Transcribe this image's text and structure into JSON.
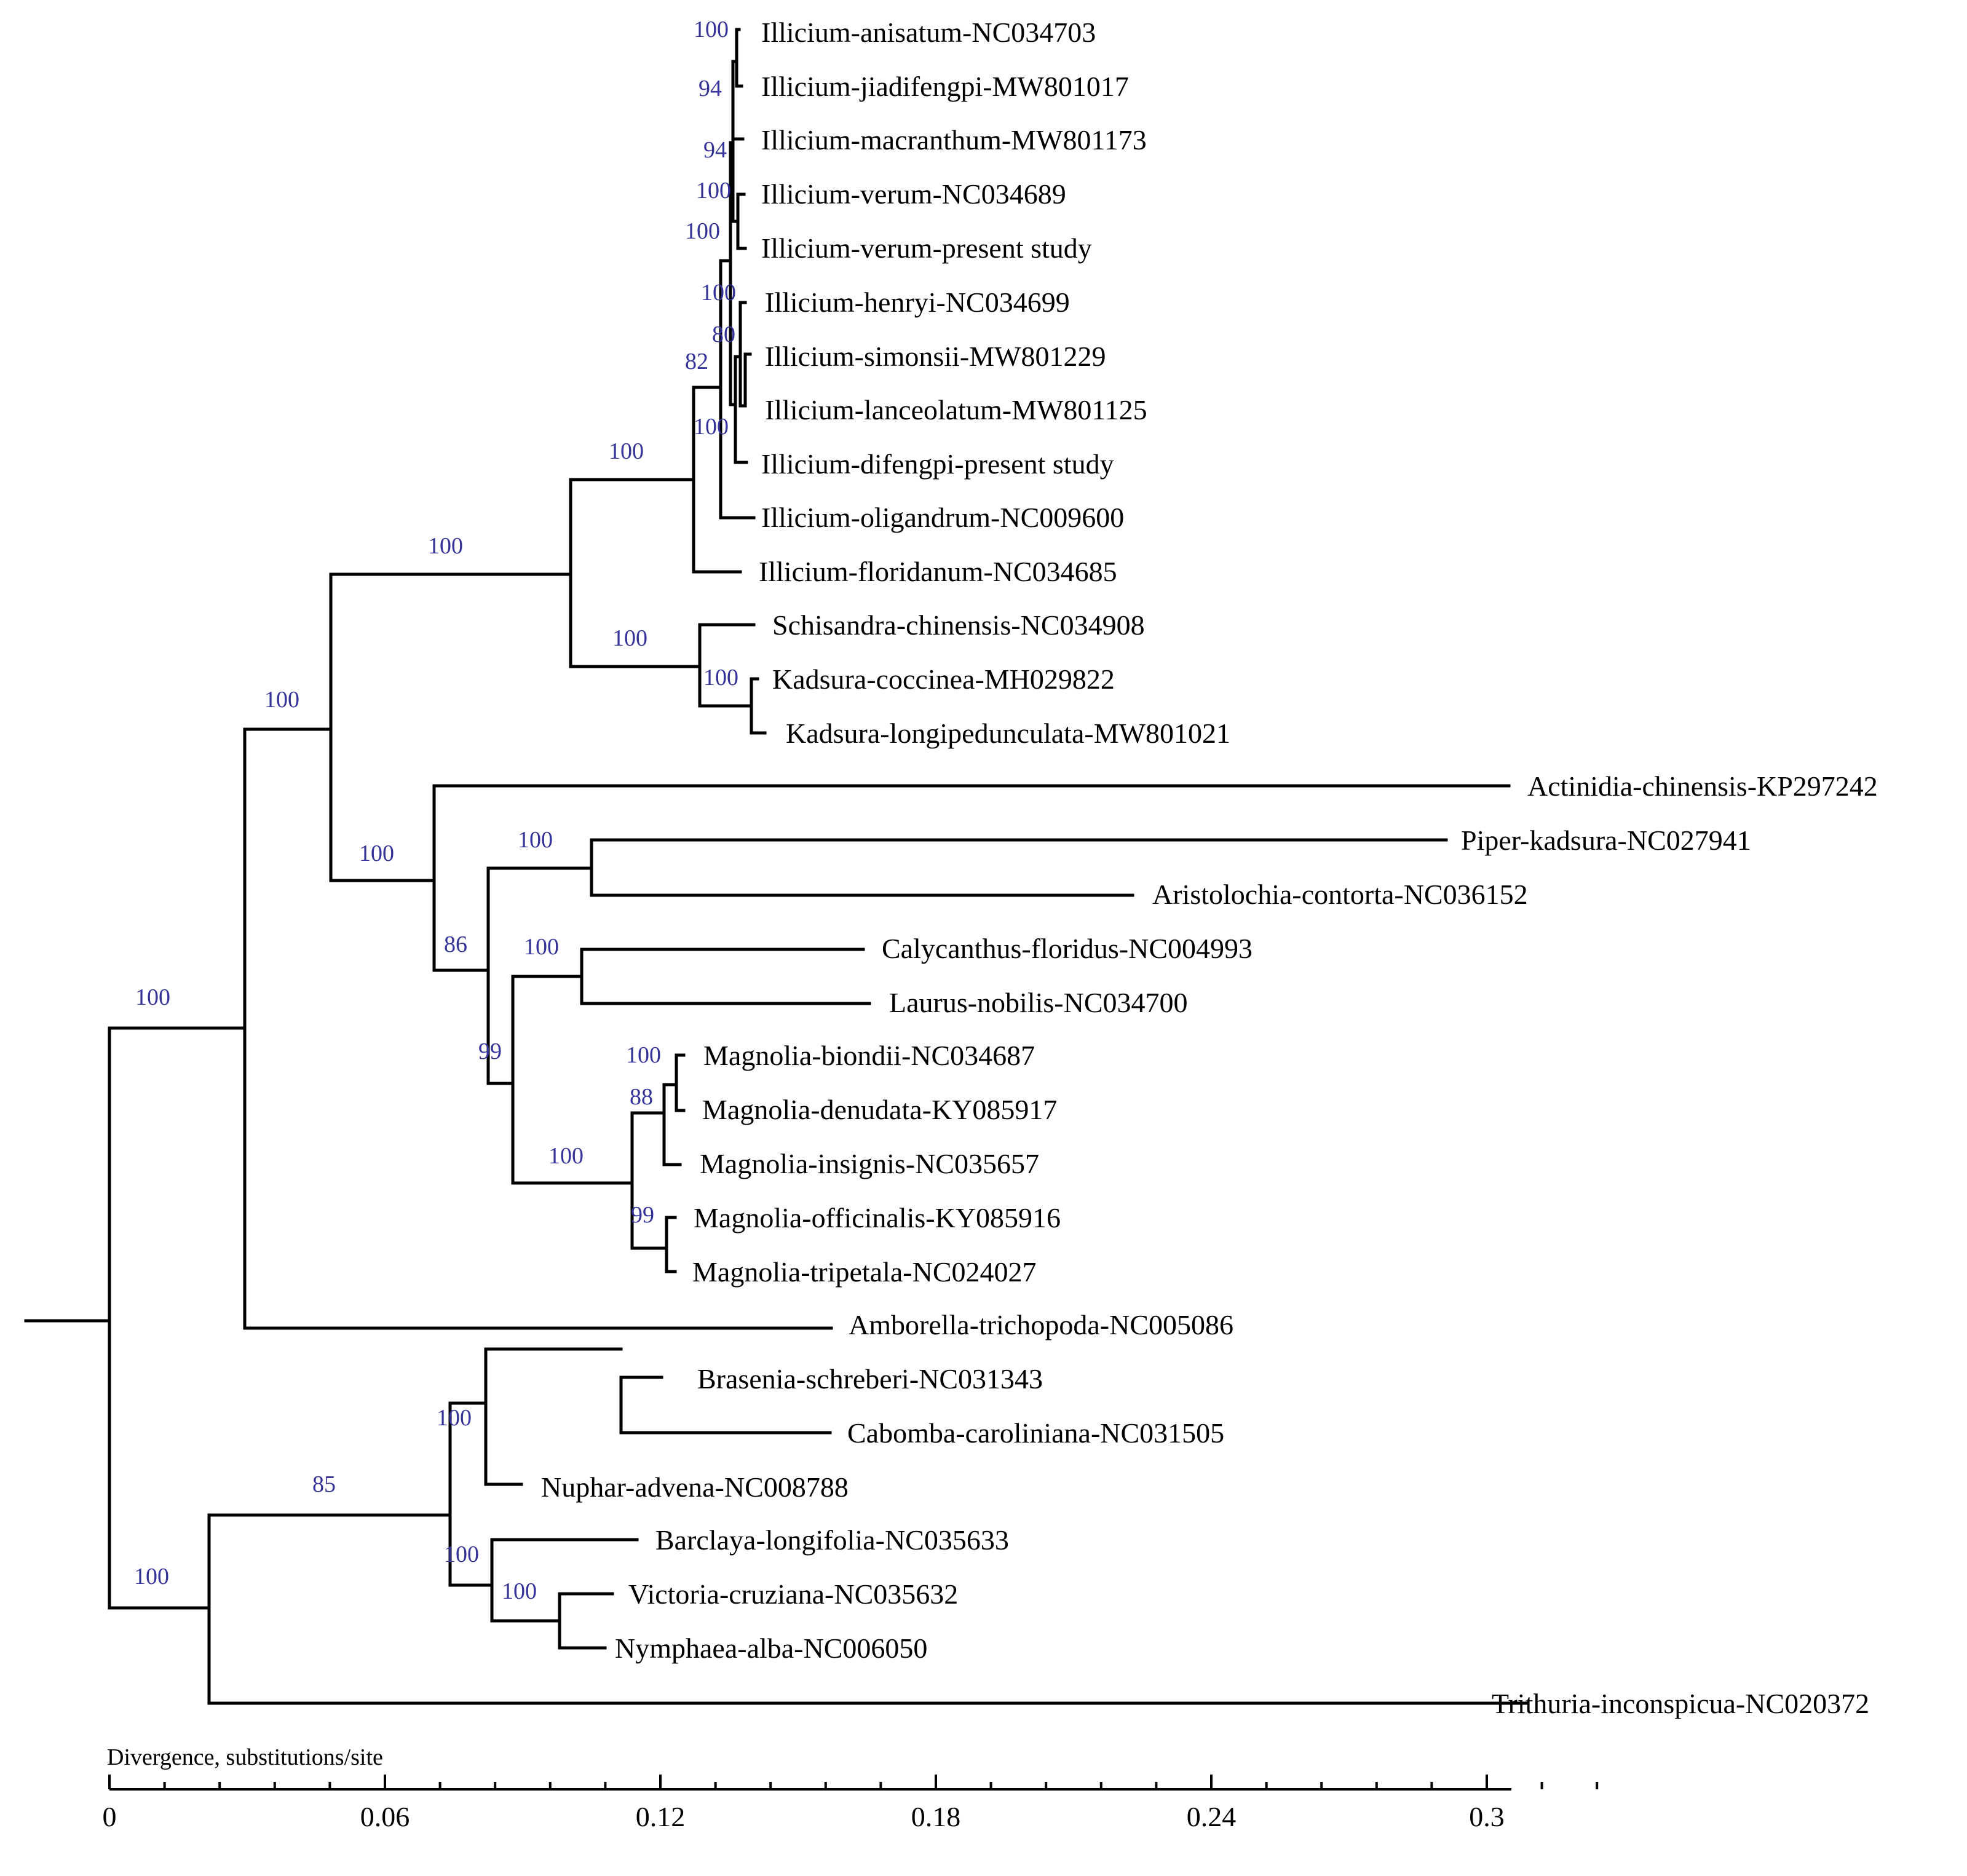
{
  "colors": {
    "bootstrap": "#333399",
    "branch": "#000000",
    "background": "#ffffff"
  },
  "taxa": [
    "Illicium-anisatum-NC034703",
    "Illicium-jiadifengpi-MW801017",
    "Illicium-macranthum-MW801173",
    "Illicium-verum-NC034689",
    "Illicium-verum-present study",
    "Illicium-henryi-NC034699",
    "Illicium-simonsii-MW801229",
    "Illicium-lanceolatum-MW801125",
    "Illicium-difengpi-present study",
    "Illicium-oligandrum-NC009600",
    "Illicium-floridanum-NC034685",
    "Schisandra-chinensis-NC034908",
    "Kadsura-coccinea-MH029822",
    "Kadsura-longipedunculata-MW801021",
    "Actinidia-chinensis-KP297242",
    "Piper-kadsura-NC027941",
    "Aristolochia-contorta-NC036152",
    "Calycanthus-floridus-NC004993",
    "Laurus-nobilis-NC034700",
    "Magnolia-biondii-NC034687",
    "Magnolia-denudata-KY085917",
    "Magnolia-insignis-NC035657",
    "Magnolia-officinalis-KY085916",
    "Magnolia-tripetala-NC024027",
    "Amborella-trichopoda-NC005086",
    "Brasenia-schreberi-NC031343",
    "Cabomba-caroliniana-NC031505",
    "Nuphar-advena-NC008788",
    "Barclaya-longifolia-NC035633",
    "Victoria-cruziana-NC035632",
    "Nymphaea-alba-NC006050",
    "Trithuria-inconspicua-NC020372"
  ],
  "bootstrap": [
    "100",
    "94",
    "94",
    "100",
    "100",
    "100",
    "80",
    "100",
    "82",
    "100",
    "100",
    "100",
    "100",
    "100",
    "100",
    "100",
    "86",
    "100",
    "99",
    "100",
    "100",
    "88",
    "99",
    "100",
    "100",
    "100",
    "85",
    "100",
    "100"
  ],
  "axis": {
    "title": "Divergence, substitutions/site",
    "ticks": [
      "0",
      "0.06",
      "0.12",
      "0.18",
      "0.24",
      "0.3"
    ]
  }
}
